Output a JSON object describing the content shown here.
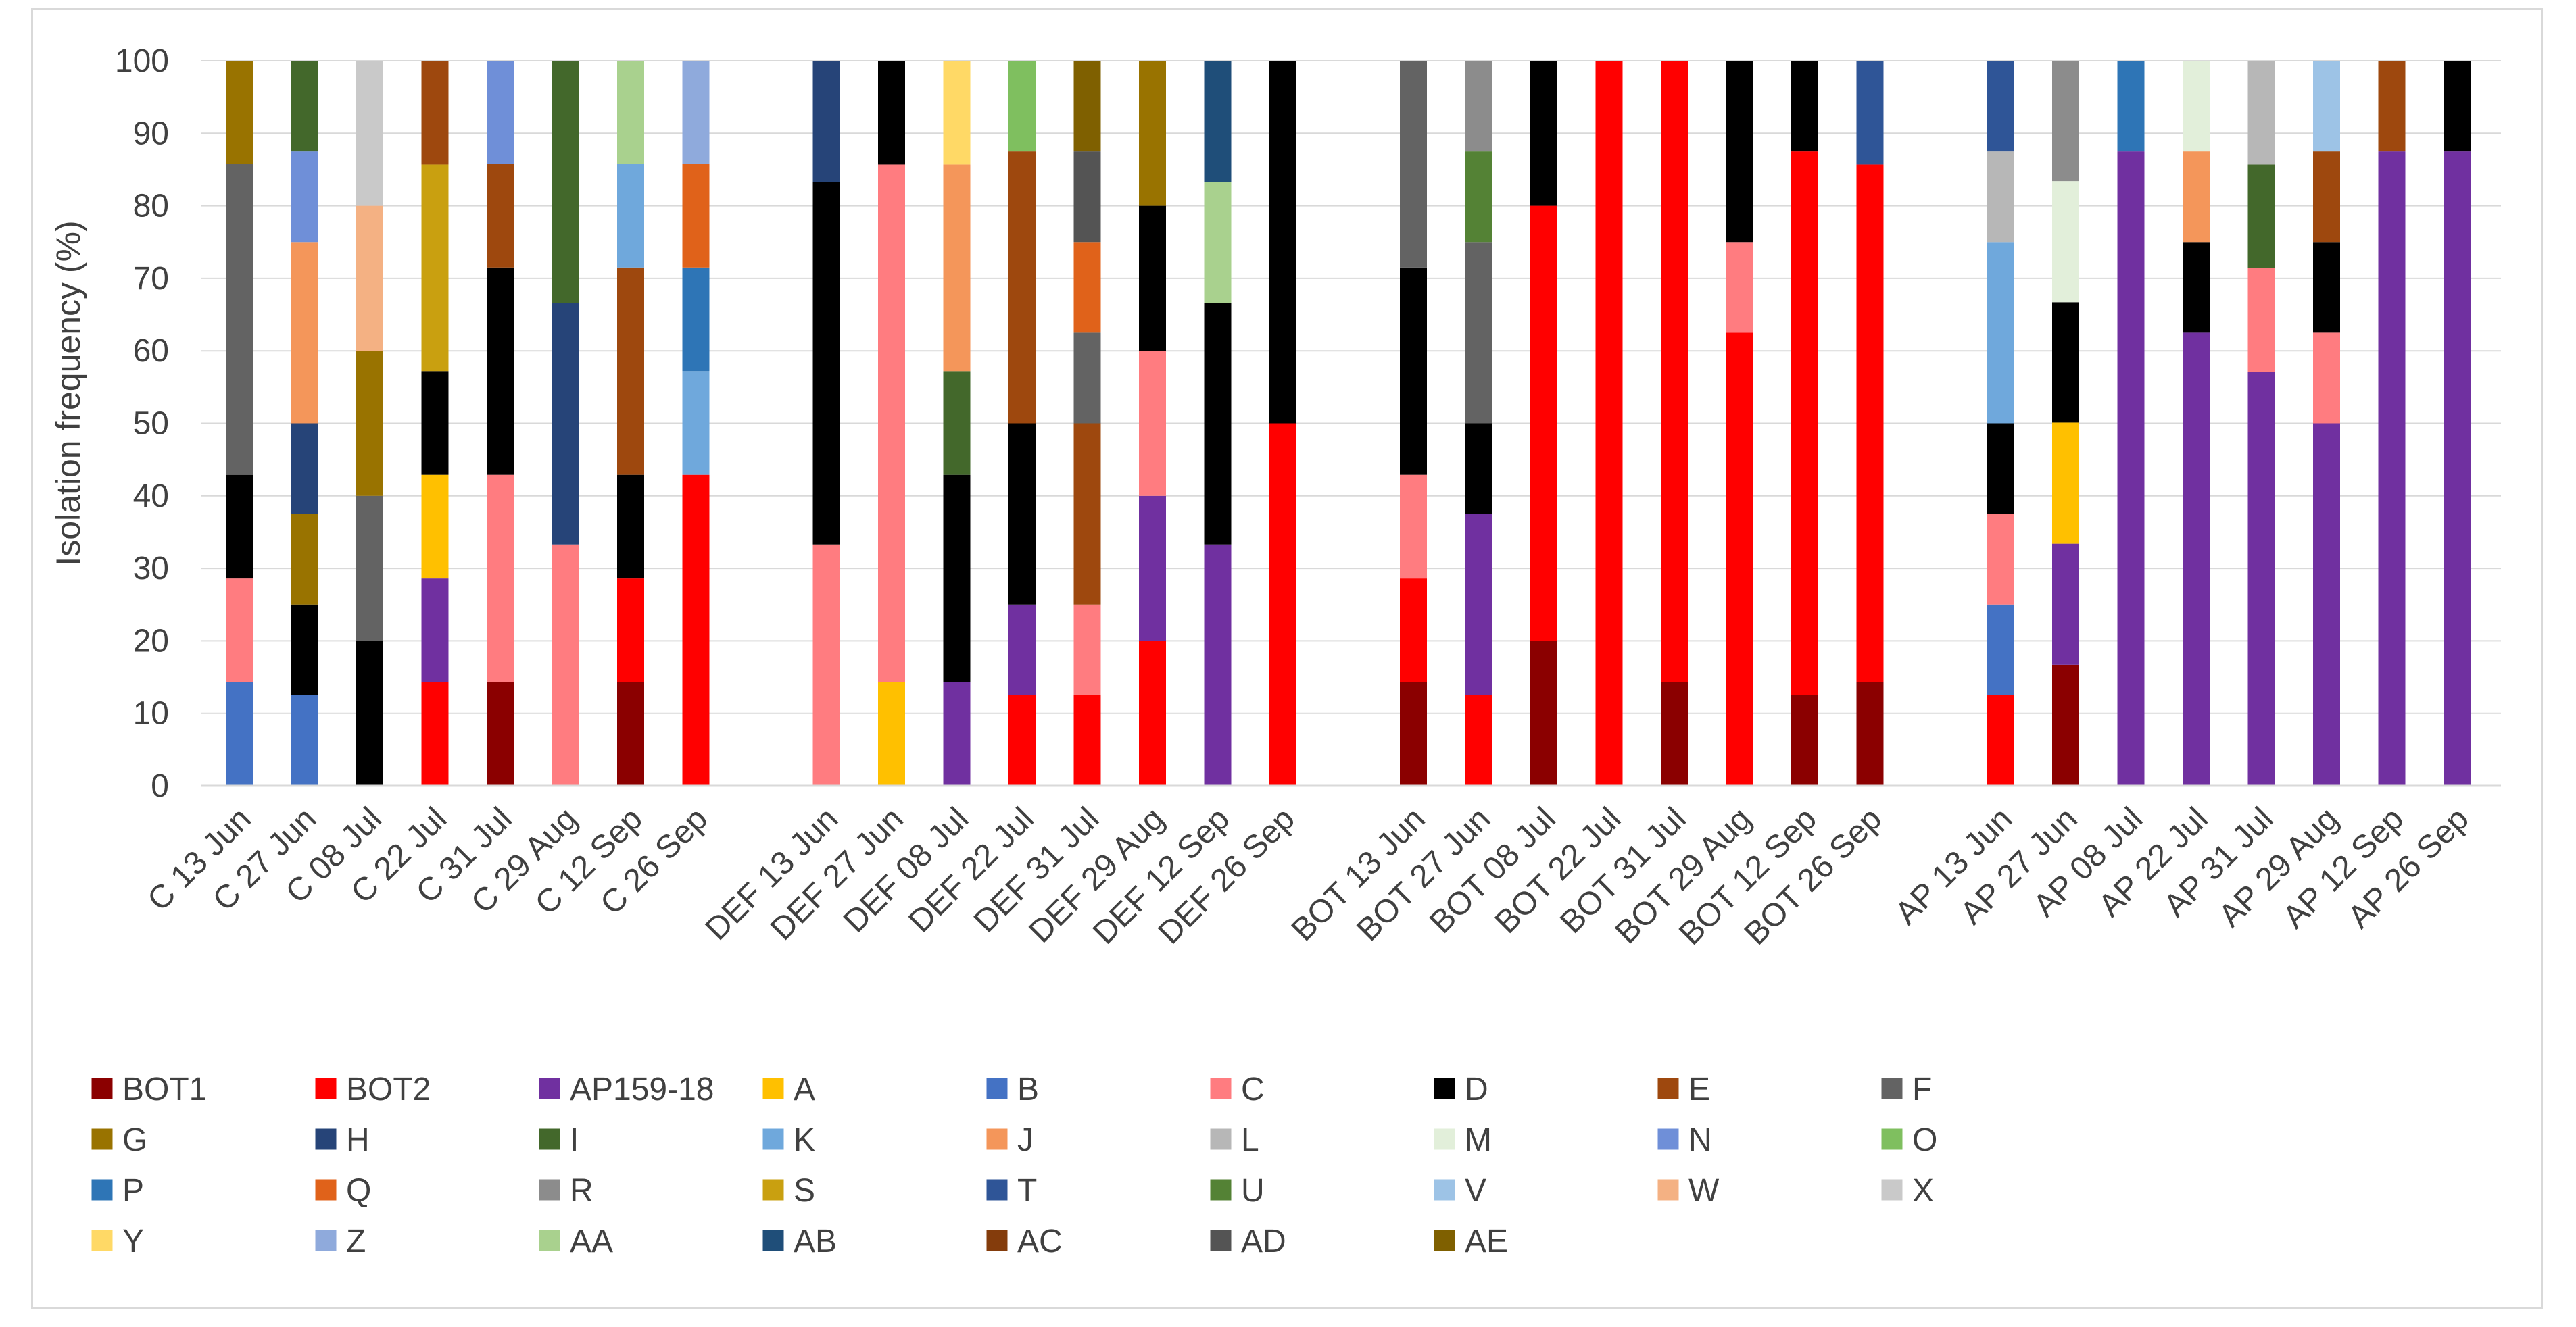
{
  "chart_data": {
    "type": "bar",
    "stacked": true,
    "title": "",
    "xlabel": "",
    "ylabel": "Isolation frequency (%)",
    "ylim": [
      0,
      100
    ],
    "yticks": [
      0,
      10,
      20,
      30,
      40,
      50,
      60,
      70,
      80,
      90,
      100
    ],
    "grid": true,
    "legend_position": "bottom",
    "colors": {
      "BOT1": "#8b0000",
      "BOT2": "#ff0000",
      "AP159-18": "#7030a0",
      "A": "#ffc000",
      "B": "#4472c4",
      "C": "#ff7c80",
      "D": "#000000",
      "E": "#9e480e",
      "F": "#636363",
      "G": "#997300",
      "H": "#264478",
      "I": "#43682b",
      "K": "#6fa8dc",
      "J": "#f4965a",
      "L": "#b7b7b7",
      "M": "#e2efda",
      "N": "#6f8fd8",
      "O": "#7fbf5f",
      "P": "#2e75b6",
      "Q": "#e0621a",
      "R": "#8c8c8c",
      "S": "#c9a010",
      "T": "#2f5597",
      "U": "#548235",
      "V": "#9dc3e6",
      "W": "#f4b183",
      "X": "#c9c9c9",
      "Y": "#ffd966",
      "Z": "#8faadc",
      "AA": "#a9d18e",
      "AB": "#1f4e79",
      "AC": "#843c0c",
      "AD": "#545454",
      "AE": "#7f6000"
    },
    "legend": [
      "BOT1",
      "BOT2",
      "AP159-18",
      "A",
      "B",
      "C",
      "D",
      "E",
      "F",
      "G",
      "H",
      "I",
      "K",
      "J",
      "L",
      "M",
      "N",
      "O",
      "P",
      "Q",
      "R",
      "S",
      "T",
      "U",
      "V",
      "W",
      "X",
      "Y",
      "Z",
      "AA",
      "AB",
      "AC",
      "AD",
      "AE"
    ],
    "groups": [
      {
        "name": "C",
        "bars": [
          {
            "label": "C 13 Jun",
            "segments": [
              [
                "B",
                14.3
              ],
              [
                "C",
                14.3
              ],
              [
                "D",
                14.3
              ],
              [
                "F",
                42.9
              ],
              [
                "G",
                14.2
              ]
            ]
          },
          {
            "label": "C 27 Jun",
            "segments": [
              [
                "B",
                12.5
              ],
              [
                "D",
                12.5
              ],
              [
                "G",
                12.5
              ],
              [
                "H",
                12.5
              ],
              [
                "J",
                25
              ],
              [
                "N",
                12.5
              ],
              [
                "I",
                12.5
              ]
            ]
          },
          {
            "label": "C 08 Jul",
            "segments": [
              [
                "D",
                20
              ],
              [
                "F",
                20
              ],
              [
                "G",
                20
              ],
              [
                "W",
                20
              ],
              [
                "X",
                20
              ]
            ]
          },
          {
            "label": "C 22 Jul",
            "segments": [
              [
                "BOT2",
                14.3
              ],
              [
                "AP159-18",
                14.3
              ],
              [
                "A",
                14.3
              ],
              [
                "D",
                14.3
              ],
              [
                "S",
                28.5
              ],
              [
                "E",
                14.3
              ]
            ]
          },
          {
            "label": "C 31 Jul",
            "segments": [
              [
                "BOT1",
                14.3
              ],
              [
                "C",
                28.6
              ],
              [
                "D",
                28.6
              ],
              [
                "E",
                14.3
              ],
              [
                "N",
                14.2
              ]
            ]
          },
          {
            "label": "C 29 Aug",
            "segments": [
              [
                "C",
                33.3
              ],
              [
                "H",
                33.3
              ],
              [
                "I",
                33.4
              ]
            ]
          },
          {
            "label": "C 12 Sep",
            "segments": [
              [
                "BOT1",
                14.3
              ],
              [
                "BOT2",
                14.3
              ],
              [
                "D",
                14.3
              ],
              [
                "E",
                28.6
              ],
              [
                "K",
                14.3
              ],
              [
                "AA",
                14.2
              ]
            ]
          },
          {
            "label": "C 26 Sep",
            "segments": [
              [
                "BOT2",
                42.9
              ],
              [
                "K",
                14.3
              ],
              [
                "P",
                14.3
              ],
              [
                "Q",
                14.3
              ],
              [
                "Z",
                14.2
              ]
            ]
          }
        ]
      },
      {
        "name": "DEF",
        "bars": [
          {
            "label": "DEF 13 Jun",
            "segments": [
              [
                "C",
                33.3
              ],
              [
                "D",
                50
              ],
              [
                "H",
                16.7
              ]
            ]
          },
          {
            "label": "DEF 27 Jun",
            "segments": [
              [
                "A",
                14.3
              ],
              [
                "C",
                71.4
              ],
              [
                "D",
                14.3
              ]
            ]
          },
          {
            "label": "DEF 08 Jul",
            "segments": [
              [
                "AP159-18",
                14.3
              ],
              [
                "D",
                28.6
              ],
              [
                "I",
                14.3
              ],
              [
                "J",
                28.5
              ],
              [
                "Y",
                14.3
              ]
            ]
          },
          {
            "label": "DEF 22 Jul",
            "segments": [
              [
                "BOT2",
                12.5
              ],
              [
                "AP159-18",
                12.5
              ],
              [
                "D",
                25
              ],
              [
                "E",
                37.5
              ],
              [
                "O",
                12.5
              ]
            ]
          },
          {
            "label": "DEF 31 Jul",
            "segments": [
              [
                "BOT2",
                12.5
              ],
              [
                "C",
                12.5
              ],
              [
                "E",
                25
              ],
              [
                "F",
                12.5
              ],
              [
                "Q",
                12.5
              ],
              [
                "AD",
                12.5
              ],
              [
                "AE",
                12.5
              ]
            ]
          },
          {
            "label": "DEF 29 Aug",
            "segments": [
              [
                "BOT2",
                20
              ],
              [
                "AP159-18",
                20
              ],
              [
                "C",
                20
              ],
              [
                "D",
                20
              ],
              [
                "G",
                20
              ]
            ]
          },
          {
            "label": "DEF 12 Sep",
            "segments": [
              [
                "AP159-18",
                33.3
              ],
              [
                "D",
                33.3
              ],
              [
                "AA",
                16.7
              ],
              [
                "AB",
                16.7
              ]
            ]
          },
          {
            "label": "DEF 26 Sep",
            "segments": [
              [
                "BOT2",
                50
              ],
              [
                "D",
                50
              ]
            ]
          }
        ]
      },
      {
        "name": "BOT",
        "bars": [
          {
            "label": "BOT 13 Jun",
            "segments": [
              [
                "BOT1",
                14.3
              ],
              [
                "BOT2",
                14.3
              ],
              [
                "C",
                14.3
              ],
              [
                "D",
                28.6
              ],
              [
                "F",
                28.5
              ]
            ]
          },
          {
            "label": "BOT 27 Jun",
            "segments": [
              [
                "BOT2",
                12.5
              ],
              [
                "AP159-18",
                25
              ],
              [
                "D",
                12.5
              ],
              [
                "F",
                25
              ],
              [
                "U",
                12.5
              ],
              [
                "R",
                12.5
              ]
            ]
          },
          {
            "label": "BOT 08 Jul",
            "segments": [
              [
                "BOT1",
                20
              ],
              [
                "BOT2",
                60
              ],
              [
                "D",
                20
              ]
            ]
          },
          {
            "label": "BOT 22 Jul",
            "segments": [
              [
                "BOT2",
                100
              ]
            ]
          },
          {
            "label": "BOT 31 Jul",
            "segments": [
              [
                "BOT1",
                14.3
              ],
              [
                "BOT2",
                85.7
              ]
            ]
          },
          {
            "label": "BOT 29 Aug",
            "segments": [
              [
                "BOT2",
                62.5
              ],
              [
                "C",
                12.5
              ],
              [
                "D",
                25
              ]
            ]
          },
          {
            "label": "BOT 12 Sep",
            "segments": [
              [
                "BOT1",
                12.5
              ],
              [
                "BOT2",
                75
              ],
              [
                "D",
                12.5
              ]
            ]
          },
          {
            "label": "BOT 26 Sep",
            "segments": [
              [
                "BOT1",
                14.3
              ],
              [
                "BOT2",
                71.4
              ],
              [
                "T",
                14.3
              ]
            ]
          }
        ]
      },
      {
        "name": "AP",
        "bars": [
          {
            "label": "AP 13 Jun",
            "segments": [
              [
                "BOT2",
                12.5
              ],
              [
                "B",
                12.5
              ],
              [
                "C",
                12.5
              ],
              [
                "D",
                12.5
              ],
              [
                "K",
                25
              ],
              [
                "L",
                12.5
              ],
              [
                "T",
                12.5
              ]
            ]
          },
          {
            "label": "AP 27 Jun",
            "segments": [
              [
                "BOT1",
                16.7
              ],
              [
                "AP159-18",
                16.7
              ],
              [
                "A",
                16.7
              ],
              [
                "D",
                16.6
              ],
              [
                "M",
                16.7
              ],
              [
                "R",
                16.6
              ]
            ]
          },
          {
            "label": "AP 08 Jul",
            "segments": [
              [
                "AP159-18",
                87.5
              ],
              [
                "P",
                12.5
              ]
            ]
          },
          {
            "label": "AP 22 Jul",
            "segments": [
              [
                "AP159-18",
                62.5
              ],
              [
                "D",
                12.5
              ],
              [
                "J",
                12.5
              ],
              [
                "M",
                12.5
              ]
            ]
          },
          {
            "label": "AP 31 Jul",
            "segments": [
              [
                "AP159-18",
                57.1
              ],
              [
                "C",
                14.3
              ],
              [
                "I",
                14.3
              ],
              [
                "L",
                14.3
              ]
            ]
          },
          {
            "label": "AP 29 Aug",
            "segments": [
              [
                "AP159-18",
                50
              ],
              [
                "C",
                12.5
              ],
              [
                "D",
                12.5
              ],
              [
                "E",
                12.5
              ],
              [
                "V",
                12.5
              ]
            ]
          },
          {
            "label": "AP 12 Sep",
            "segments": [
              [
                "AP159-18",
                87.5
              ],
              [
                "E",
                12.5
              ]
            ]
          },
          {
            "label": "AP 26 Sep",
            "segments": [
              [
                "AP159-18",
                87.5
              ],
              [
                "D",
                12.5
              ]
            ]
          }
        ]
      }
    ]
  }
}
